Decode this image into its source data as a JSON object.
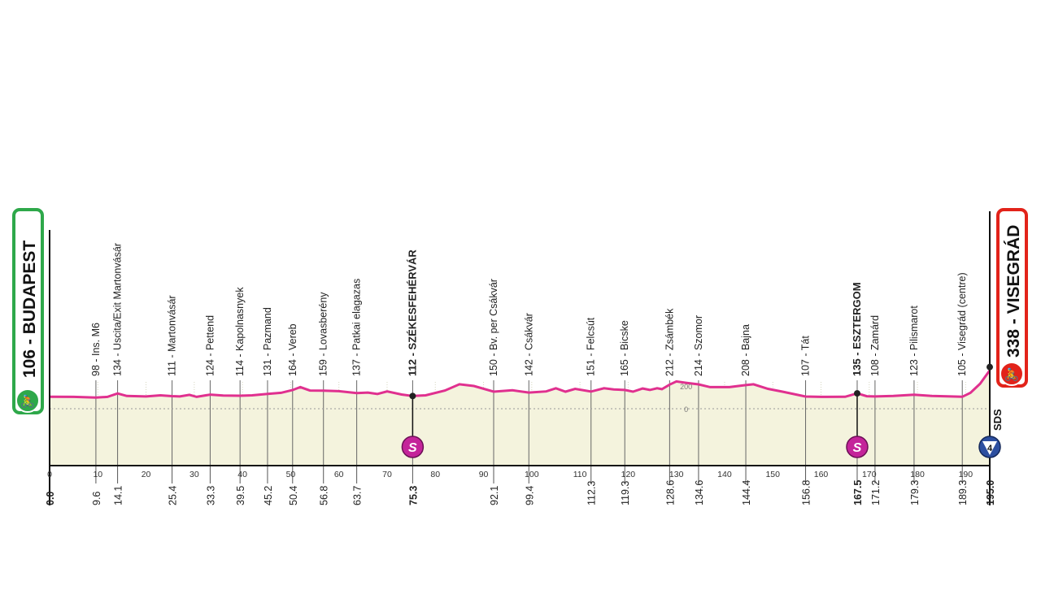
{
  "chart_data": {
    "type": "area",
    "xlabel": "",
    "ylabel": "",
    "xlim": [
      0,
      195
    ],
    "x_ticks": [
      0,
      10,
      20,
      30,
      40,
      50,
      60,
      70,
      80,
      90,
      100,
      110,
      120,
      130,
      140,
      150,
      160,
      170,
      180,
      190
    ],
    "elevation_ref_labels": [
      "200",
      "0"
    ],
    "start": {
      "label": "106 - BUDAPEST",
      "km": "0.0",
      "elevation": 106
    },
    "finish": {
      "label": "338 - VISEGRÁD",
      "km": "195.0",
      "elevation": 338
    },
    "waypoints": [
      {
        "km": 9.6,
        "km_label": "9.6",
        "elevation": 98,
        "label": "98 - Ins. M6"
      },
      {
        "km": 14.1,
        "km_label": "14.1",
        "elevation": 134,
        "label": "134 - Uscita/Exit  Martonvásár"
      },
      {
        "km": 25.4,
        "km_label": "25.4",
        "elevation": 111,
        "label": "111 - Martonvásár"
      },
      {
        "km": 33.3,
        "km_label": "33.3",
        "elevation": 124,
        "label": "124 - Pettend"
      },
      {
        "km": 39.5,
        "km_label": "39.5",
        "elevation": 114,
        "label": "114 - Kapolnasnyek"
      },
      {
        "km": 45.2,
        "km_label": "45.2",
        "elevation": 131,
        "label": "131 - Pazmand"
      },
      {
        "km": 50.4,
        "km_label": "50.4",
        "elevation": 164,
        "label": "164 - Vereb"
      },
      {
        "km": 56.8,
        "km_label": "56.8",
        "elevation": 159,
        "label": "159 - Lovasberény"
      },
      {
        "km": 63.7,
        "km_label": "63.7",
        "elevation": 137,
        "label": "137 - Patkai elagazas"
      },
      {
        "km": 75.3,
        "km_label": "75.3",
        "elevation": 112,
        "label": "112 - SZÉKESFEHÉRVÁR",
        "bold": true,
        "sprint": true
      },
      {
        "km": 92.1,
        "km_label": "92.1",
        "elevation": 150,
        "label": "150 - Bv. per Csákvár"
      },
      {
        "km": 99.4,
        "km_label": "99.4",
        "elevation": 142,
        "label": "142 - Csákvár"
      },
      {
        "km": 112.3,
        "km_label": "112.3",
        "elevation": 151,
        "label": "151 - Felcsút"
      },
      {
        "km": 119.3,
        "km_label": "119.3",
        "elevation": 165,
        "label": "165 - Bicske"
      },
      {
        "km": 128.6,
        "km_label": "128.6",
        "elevation": 212,
        "label": "212 - Zsámbék"
      },
      {
        "km": 134.6,
        "km_label": "134.6",
        "elevation": 214,
        "label": "214 - Szomor"
      },
      {
        "km": 144.4,
        "km_label": "144.4",
        "elevation": 208,
        "label": "208 - Bajna"
      },
      {
        "km": 156.8,
        "km_label": "156.8",
        "elevation": 107,
        "label": "107 - Tát"
      },
      {
        "km": 167.5,
        "km_label": "167.5",
        "elevation": 135,
        "label": "135 - ESZTERGOM",
        "bold": true,
        "sprint": true
      },
      {
        "km": 171.2,
        "km_label": "171.2",
        "elevation": 108,
        "label": "108 - Zamárd"
      },
      {
        "km": 179.3,
        "km_label": "179.3",
        "elevation": 123,
        "label": "123 - Pilismarot"
      },
      {
        "km": 189.3,
        "km_label": "189.3",
        "elevation": 105,
        "label": "105 - Visegrád (centre)"
      }
    ],
    "profile": [
      [
        0,
        106
      ],
      [
        5,
        104
      ],
      [
        9.6,
        98
      ],
      [
        12,
        104
      ],
      [
        14.1,
        134
      ],
      [
        16,
        112
      ],
      [
        20,
        108
      ],
      [
        23,
        118
      ],
      [
        25.4,
        111
      ],
      [
        27,
        108
      ],
      [
        29,
        122
      ],
      [
        30.5,
        104
      ],
      [
        33.3,
        124
      ],
      [
        36,
        116
      ],
      [
        39.5,
        114
      ],
      [
        42,
        118
      ],
      [
        45.2,
        131
      ],
      [
        48,
        140
      ],
      [
        50.4,
        164
      ],
      [
        52,
        190
      ],
      [
        54,
        160
      ],
      [
        56.8,
        159
      ],
      [
        60,
        154
      ],
      [
        63.7,
        137
      ],
      [
        66,
        142
      ],
      [
        68,
        130
      ],
      [
        70,
        152
      ],
      [
        73,
        125
      ],
      [
        75.3,
        112
      ],
      [
        78,
        118
      ],
      [
        82,
        160
      ],
      [
        85,
        215
      ],
      [
        88,
        200
      ],
      [
        92.1,
        150
      ],
      [
        96,
        162
      ],
      [
        99.4,
        142
      ],
      [
        103,
        152
      ],
      [
        105,
        180
      ],
      [
        107,
        150
      ],
      [
        109,
        175
      ],
      [
        112.3,
        151
      ],
      [
        115,
        180
      ],
      [
        117,
        170
      ],
      [
        119.3,
        165
      ],
      [
        121,
        150
      ],
      [
        123,
        178
      ],
      [
        124.5,
        165
      ],
      [
        126,
        180
      ],
      [
        127,
        172
      ],
      [
        128.6,
        212
      ],
      [
        130,
        240
      ],
      [
        132,
        228
      ],
      [
        134.6,
        214
      ],
      [
        137,
        190
      ],
      [
        141,
        190
      ],
      [
        144.4,
        208
      ],
      [
        146,
        215
      ],
      [
        149,
        175
      ],
      [
        152,
        150
      ],
      [
        156.8,
        107
      ],
      [
        160,
        104
      ],
      [
        165,
        105
      ],
      [
        167.5,
        135
      ],
      [
        169.5,
        110
      ],
      [
        171.2,
        108
      ],
      [
        175,
        112
      ],
      [
        179.3,
        123
      ],
      [
        183,
        112
      ],
      [
        187,
        108
      ],
      [
        189.3,
        105
      ],
      [
        191,
        140
      ],
      [
        193,
        220
      ],
      [
        195,
        338
      ]
    ],
    "markers": [
      {
        "km": 75.3,
        "type": "sprint",
        "symbol": "S"
      },
      {
        "km": 167.5,
        "type": "sprint",
        "symbol": "S"
      },
      {
        "km": 195,
        "type": "climb",
        "symbol": "4",
        "category_label": "SDS"
      }
    ],
    "colors": {
      "profile_line": "#e0308f",
      "fill": "#f4f3dd",
      "start": "#2ea84a",
      "finish": "#e2231a",
      "sprint": "#c4249a",
      "climb": "#2d4fa0"
    }
  }
}
